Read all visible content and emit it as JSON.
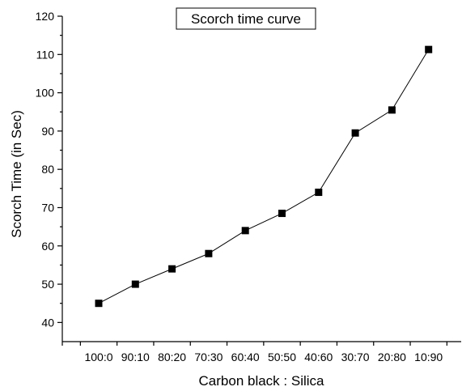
{
  "chart_data": {
    "type": "line",
    "title": "Scorch time curve",
    "xlabel": "Carbon black : Silica",
    "ylabel": "Scorch Time (in Sec)",
    "categories": [
      "100:0",
      "90:10",
      "80:20",
      "70:30",
      "60:40",
      "50:50",
      "40:60",
      "30:70",
      "20:80",
      "10:90"
    ],
    "series": [
      {
        "values": [
          45,
          50,
          54,
          58,
          64,
          68.5,
          74,
          89.5,
          95.5,
          111.3
        ]
      }
    ],
    "ylim": [
      35,
      120
    ],
    "yticks": [
      40,
      50,
      60,
      70,
      80,
      90,
      100,
      110,
      120
    ],
    "marker": "square",
    "grid": false,
    "legend": "none"
  }
}
